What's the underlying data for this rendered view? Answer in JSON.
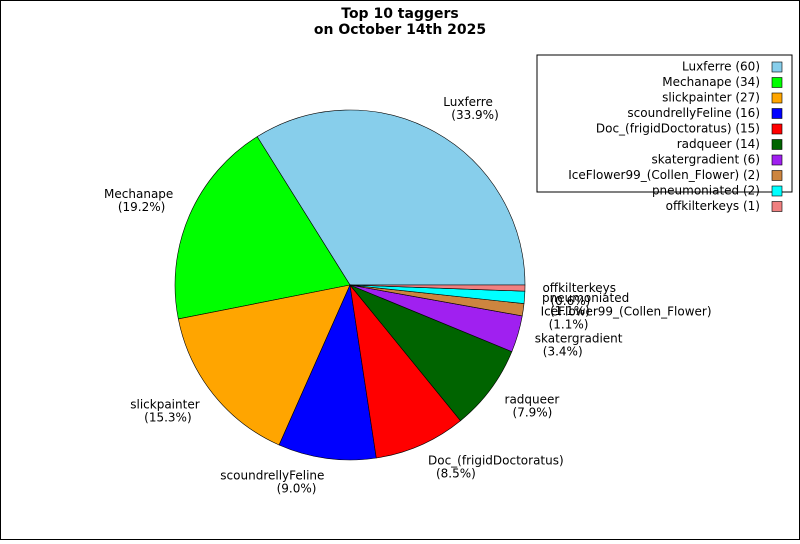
{
  "chart_data": {
    "type": "pie",
    "title": "Top 10 taggers",
    "subtitle": "on October 14th 2025",
    "categories": [
      "Luxferre",
      "Mechanape",
      "slickpainter",
      "scoundrellyFeline",
      "Doc_(frigidDoctoratus)",
      "radqueer",
      "skatergradient",
      "IceFlower99_(Collen_Flower)",
      "pneumoniated",
      "offkilterkeys"
    ],
    "values": [
      60,
      34,
      27,
      16,
      15,
      14,
      6,
      2,
      2,
      1
    ],
    "percent_labels": [
      "(33.9%)",
      "(19.2%)",
      "(15.3%)",
      "(9.0%)",
      "(8.5%)",
      "(7.9%)",
      "(3.4%)",
      "(1.1%)",
      "(1.1%)",
      "(0.6%)"
    ],
    "legend_labels": [
      "Luxferre (60)",
      "Mechanape (34)",
      "slickpainter (27)",
      "scoundrellyFeline (16)",
      "Doc_(frigidDoctoratus) (15)",
      "radqueer (14)",
      "skatergradient (6)",
      "IceFlower99_(Collen_Flower) (2)",
      "pneumoniated (2)",
      "offkilterkeys (1)"
    ],
    "colors": [
      "#87ceeb",
      "#00ff00",
      "#ffa500",
      "#0000ff",
      "#ff0000",
      "#006400",
      "#a020f0",
      "#cd853f",
      "#00ffff",
      "#f08080"
    ],
    "legend": "upper right"
  }
}
